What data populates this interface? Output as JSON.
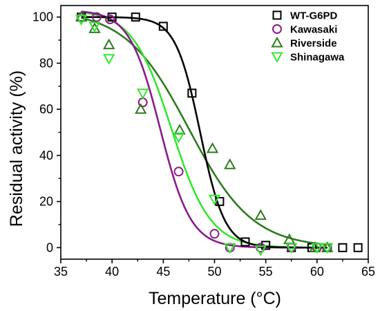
{
  "chart_data": {
    "type": "scatter",
    "xlabel": "Temperature (°C)",
    "ylabel": "Residual activity (%)",
    "xlim": [
      35,
      65
    ],
    "ylim": [
      -5,
      105
    ],
    "x_ticks": [
      35,
      40,
      45,
      50,
      55,
      60,
      65
    ],
    "y_ticks": [
      0,
      20,
      40,
      60,
      80,
      100
    ],
    "grid": false,
    "legend_position": "top-right",
    "series": [
      {
        "name": "WT-G6PD",
        "color": "#000000",
        "marker": "square",
        "points": [
          {
            "x": 37,
            "y": 100
          },
          {
            "x": 40,
            "y": 100
          },
          {
            "x": 42.3,
            "y": 100
          },
          {
            "x": 45,
            "y": 96
          },
          {
            "x": 47.8,
            "y": 67
          },
          {
            "x": 50.5,
            "y": 20
          },
          {
            "x": 53,
            "y": 2.5
          },
          {
            "x": 55,
            "y": 1
          },
          {
            "x": 57.5,
            "y": 0
          },
          {
            "x": 59.5,
            "y": 0
          },
          {
            "x": 61,
            "y": 0
          },
          {
            "x": 62.5,
            "y": 0
          },
          {
            "x": 64,
            "y": 0
          }
        ],
        "fit": {
          "top": 100,
          "midpoint": 48.6,
          "slope": 1.2
        }
      },
      {
        "name": "Kawasaki",
        "color": "#8b1a89",
        "marker": "circle",
        "points": [
          {
            "x": 37,
            "y": 100
          },
          {
            "x": 38.5,
            "y": 100
          },
          {
            "x": 39.8,
            "y": 99
          },
          {
            "x": 43,
            "y": 63
          },
          {
            "x": 46.5,
            "y": 33
          },
          {
            "x": 50,
            "y": 6
          },
          {
            "x": 51.5,
            "y": 0
          },
          {
            "x": 54.5,
            "y": 0
          },
          {
            "x": 57.5,
            "y": 0
          },
          {
            "x": 60,
            "y": 0
          },
          {
            "x": 61,
            "y": 0
          }
        ],
        "fit": {
          "top": 103,
          "midpoint": 44.7,
          "slope": 1.5
        }
      },
      {
        "name": "Riverside",
        "color": "#2d7a1e",
        "marker": "triangle-up",
        "points": [
          {
            "x": 37,
            "y": 100
          },
          {
            "x": 38.3,
            "y": 95
          },
          {
            "x": 39.7,
            "y": 88
          },
          {
            "x": 42.8,
            "y": 60
          },
          {
            "x": 46.6,
            "y": 51
          },
          {
            "x": 49.8,
            "y": 43
          },
          {
            "x": 51.5,
            "y": 36
          },
          {
            "x": 54.5,
            "y": 14
          },
          {
            "x": 57.3,
            "y": 3.5
          },
          {
            "x": 59.8,
            "y": 0
          },
          {
            "x": 61,
            "y": 0
          }
        ],
        "fit": {
          "top": 103,
          "midpoint": 47.5,
          "slope": 3.1
        }
      },
      {
        "name": "Shinagawa",
        "color": "#33e62e",
        "marker": "triangle-down",
        "points": [
          {
            "x": 37,
            "y": 99
          },
          {
            "x": 38.3,
            "y": 96
          },
          {
            "x": 39.7,
            "y": 82
          },
          {
            "x": 43,
            "y": 67
          },
          {
            "x": 46.5,
            "y": 48
          },
          {
            "x": 50,
            "y": 21
          },
          {
            "x": 51.5,
            "y": 0
          },
          {
            "x": 54.5,
            "y": -1
          },
          {
            "x": 57.5,
            "y": 0
          },
          {
            "x": 60,
            "y": 0
          },
          {
            "x": 61,
            "y": 0
          }
        ],
        "fit": {
          "top": 103,
          "midpoint": 45.8,
          "slope": 1.9
        }
      }
    ]
  }
}
